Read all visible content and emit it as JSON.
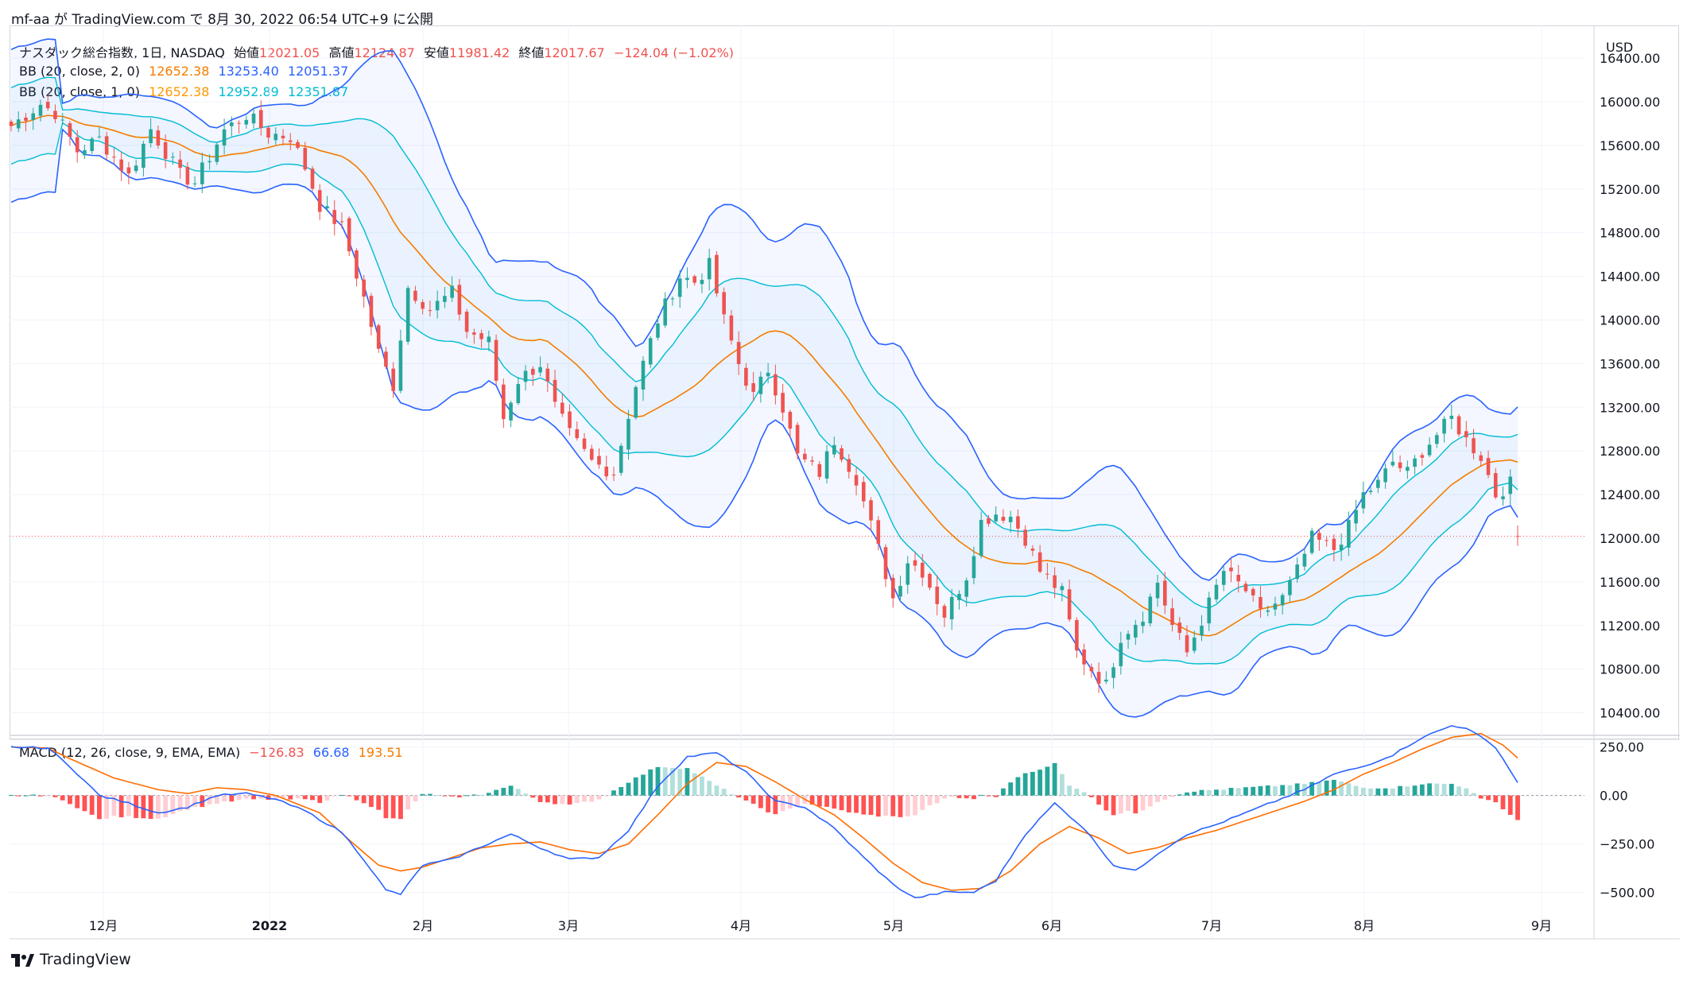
{
  "header": {
    "publisher": "mf-aa が TradingView.com で 8月 30, 2022 06:54 UTC+9 に公開"
  },
  "footer": {
    "brand": "TradingView"
  },
  "chart_data": [
    {
      "type": "candlestick",
      "title": "ナスダック総合指数, 1日, NASDAQ",
      "ohlc": {
        "open_label": "始値",
        "open": "12021.05",
        "high_label": "高値",
        "high": "12124.87",
        "low_label": "安値",
        "low": "11981.42",
        "close_label": "終値",
        "close": "12017.67",
        "change": "−124.04 (−1.02%)"
      },
      "currency": "USD",
      "ylim": [
        10200,
        16700
      ],
      "yticks": [
        "16400.00",
        "16000.00",
        "15600.00",
        "15200.00",
        "14800.00",
        "14400.00",
        "14000.00",
        "13600.00",
        "13200.00",
        "12800.00",
        "12400.00",
        "12000.00",
        "11600.00",
        "11200.00",
        "10800.00",
        "10400.00"
      ],
      "xtick_labels": [
        "12月",
        "2022",
        "2月",
        "3月",
        "4月",
        "5月",
        "6月",
        "7月",
        "8月",
        "9月"
      ],
      "current_price_line": 12017.67,
      "indicators": [
        {
          "name": "BB (20, close, 2, 0)",
          "basis": "12652.38",
          "upper": "13253.40",
          "lower": "12051.37",
          "colors": {
            "basis": "#f57c00",
            "upper": "#2962ff",
            "lower": "#2962ff"
          }
        },
        {
          "name": "BB (20, close, 1, 0)",
          "basis": "12652.38",
          "upper": "12952.89",
          "lower": "12351.87",
          "colors": {
            "basis": "#ff9800",
            "upper": "#00bcd4",
            "lower": "#00bcd4"
          }
        }
      ],
      "price_waypoints": [
        [
          0,
          15780
        ],
        [
          4,
          15980
        ],
        [
          6,
          15900
        ],
        [
          9,
          15550
        ],
        [
          12,
          15660
        ],
        [
          16,
          15320
        ],
        [
          19,
          15750
        ],
        [
          23,
          15330
        ],
        [
          25,
          15260
        ],
        [
          29,
          15740
        ],
        [
          32,
          15880
        ],
        [
          35,
          15710
        ],
        [
          38,
          15680
        ],
        [
          40,
          15400
        ],
        [
          42,
          15050
        ],
        [
          45,
          14850
        ],
        [
          48,
          14200
        ],
        [
          50,
          13700
        ],
        [
          52,
          13400
        ],
        [
          54,
          14300
        ],
        [
          57,
          14100
        ],
        [
          60,
          14250
        ],
        [
          62,
          13900
        ],
        [
          65,
          13800
        ],
        [
          67,
          13100
        ],
        [
          69,
          13450
        ],
        [
          72,
          13600
        ],
        [
          74,
          13200
        ],
        [
          76,
          12950
        ],
        [
          79,
          12700
        ],
        [
          82,
          12600
        ],
        [
          85,
          13400
        ],
        [
          88,
          14000
        ],
        [
          91,
          14400
        ],
        [
          93,
          14350
        ],
        [
          95,
          14500
        ],
        [
          97,
          14000
        ],
        [
          99,
          13600
        ],
        [
          101,
          13300
        ],
        [
          103,
          13550
        ],
        [
          105,
          13200
        ],
        [
          107,
          12750
        ],
        [
          110,
          12600
        ],
        [
          112,
          12900
        ],
        [
          115,
          12550
        ],
        [
          118,
          11900
        ],
        [
          120,
          11450
        ],
        [
          122,
          11800
        ],
        [
          124,
          11700
        ],
        [
          127,
          11300
        ],
        [
          130,
          11660
        ],
        [
          132,
          12150
        ],
        [
          134,
          12230
        ],
        [
          136,
          12200
        ],
        [
          138,
          12000
        ],
        [
          140,
          11700
        ],
        [
          143,
          11500
        ],
        [
          145,
          10950
        ],
        [
          147,
          10800
        ],
        [
          149,
          10650
        ],
        [
          151,
          11100
        ],
        [
          154,
          11300
        ],
        [
          156,
          11600
        ],
        [
          158,
          11200
        ],
        [
          160,
          10950
        ],
        [
          163,
          11400
        ],
        [
          165,
          11700
        ],
        [
          168,
          11520
        ],
        [
          170,
          11300
        ],
        [
          173,
          11450
        ],
        [
          175,
          11700
        ],
        [
          177,
          12000
        ],
        [
          180,
          11900
        ],
        [
          182,
          12100
        ],
        [
          184,
          12400
        ],
        [
          186,
          12500
        ],
        [
          188,
          12700
        ],
        [
          190,
          12600
        ],
        [
          192,
          12800
        ],
        [
          194,
          12950
        ],
        [
          196,
          13100
        ],
        [
          198,
          12900
        ],
        [
          200,
          12750
        ],
        [
          202,
          12400
        ],
        [
          204,
          12500
        ],
        [
          205,
          12020
        ]
      ]
    },
    {
      "type": "line+histogram",
      "title": "MACD (12, 26, close, 9, EMA, EMA)",
      "histogram_last": "−126.83",
      "macd_last": "66.68",
      "signal_last": "193.51",
      "ylim": [
        -560,
        290
      ],
      "yticks": [
        "250.00",
        "0.00",
        "−250.00",
        "−500.00"
      ],
      "colors": {
        "macd": "#2962ff",
        "signal": "#ff6d00",
        "hist_up_strong": "#26a69a",
        "hist_up_weak": "#b2dfdb",
        "hist_down_strong": "#ff5252",
        "hist_down_weak": "#ffcdd2"
      },
      "macd_waypoints": [
        [
          0,
          250
        ],
        [
          5,
          245
        ],
        [
          8,
          150
        ],
        [
          12,
          0
        ],
        [
          16,
          -40
        ],
        [
          20,
          -90
        ],
        [
          24,
          -60
        ],
        [
          28,
          0
        ],
        [
          32,
          10
        ],
        [
          36,
          -20
        ],
        [
          40,
          -80
        ],
        [
          45,
          -190
        ],
        [
          48,
          -330
        ],
        [
          51,
          -490
        ],
        [
          53,
          -510
        ],
        [
          56,
          -360
        ],
        [
          60,
          -330
        ],
        [
          63,
          -280
        ],
        [
          68,
          -200
        ],
        [
          72,
          -270
        ],
        [
          76,
          -330
        ],
        [
          80,
          -320
        ],
        [
          84,
          -180
        ],
        [
          88,
          50
        ],
        [
          92,
          200
        ],
        [
          96,
          220
        ],
        [
          100,
          120
        ],
        [
          104,
          -30
        ],
        [
          108,
          -60
        ],
        [
          112,
          -170
        ],
        [
          116,
          -320
        ],
        [
          120,
          -460
        ],
        [
          123,
          -530
        ],
        [
          127,
          -500
        ],
        [
          131,
          -500
        ],
        [
          134,
          -440
        ],
        [
          138,
          -200
        ],
        [
          142,
          -40
        ],
        [
          146,
          -170
        ],
        [
          150,
          -360
        ],
        [
          153,
          -390
        ],
        [
          156,
          -300
        ],
        [
          160,
          -200
        ],
        [
          164,
          -150
        ],
        [
          168,
          -90
        ],
        [
          172,
          -30
        ],
        [
          176,
          30
        ],
        [
          180,
          110
        ],
        [
          184,
          150
        ],
        [
          188,
          210
        ],
        [
          192,
          300
        ],
        [
          196,
          360
        ],
        [
          198,
          350
        ],
        [
          202,
          250
        ],
        [
          205,
          67
        ]
      ],
      "signal_waypoints": [
        [
          0,
          250
        ],
        [
          5,
          245
        ],
        [
          8,
          190
        ],
        [
          14,
          90
        ],
        [
          20,
          30
        ],
        [
          24,
          10
        ],
        [
          28,
          40
        ],
        [
          32,
          30
        ],
        [
          36,
          0
        ],
        [
          42,
          -90
        ],
        [
          46,
          -230
        ],
        [
          50,
          -360
        ],
        [
          53,
          -390
        ],
        [
          56,
          -370
        ],
        [
          60,
          -320
        ],
        [
          64,
          -270
        ],
        [
          68,
          -250
        ],
        [
          72,
          -240
        ],
        [
          76,
          -280
        ],
        [
          80,
          -300
        ],
        [
          84,
          -250
        ],
        [
          88,
          -100
        ],
        [
          92,
          60
        ],
        [
          96,
          170
        ],
        [
          100,
          150
        ],
        [
          104,
          70
        ],
        [
          108,
          -20
        ],
        [
          112,
          -100
        ],
        [
          116,
          -220
        ],
        [
          120,
          -350
        ],
        [
          124,
          -450
        ],
        [
          128,
          -490
        ],
        [
          132,
          -480
        ],
        [
          136,
          -390
        ],
        [
          140,
          -250
        ],
        [
          144,
          -160
        ],
        [
          148,
          -220
        ],
        [
          152,
          -300
        ],
        [
          156,
          -270
        ],
        [
          160,
          -220
        ],
        [
          164,
          -180
        ],
        [
          168,
          -130
        ],
        [
          172,
          -80
        ],
        [
          176,
          -30
        ],
        [
          180,
          30
        ],
        [
          184,
          110
        ],
        [
          188,
          170
        ],
        [
          192,
          240
        ],
        [
          196,
          300
        ],
        [
          200,
          320
        ],
        [
          203,
          260
        ],
        [
          205,
          194
        ]
      ]
    }
  ]
}
